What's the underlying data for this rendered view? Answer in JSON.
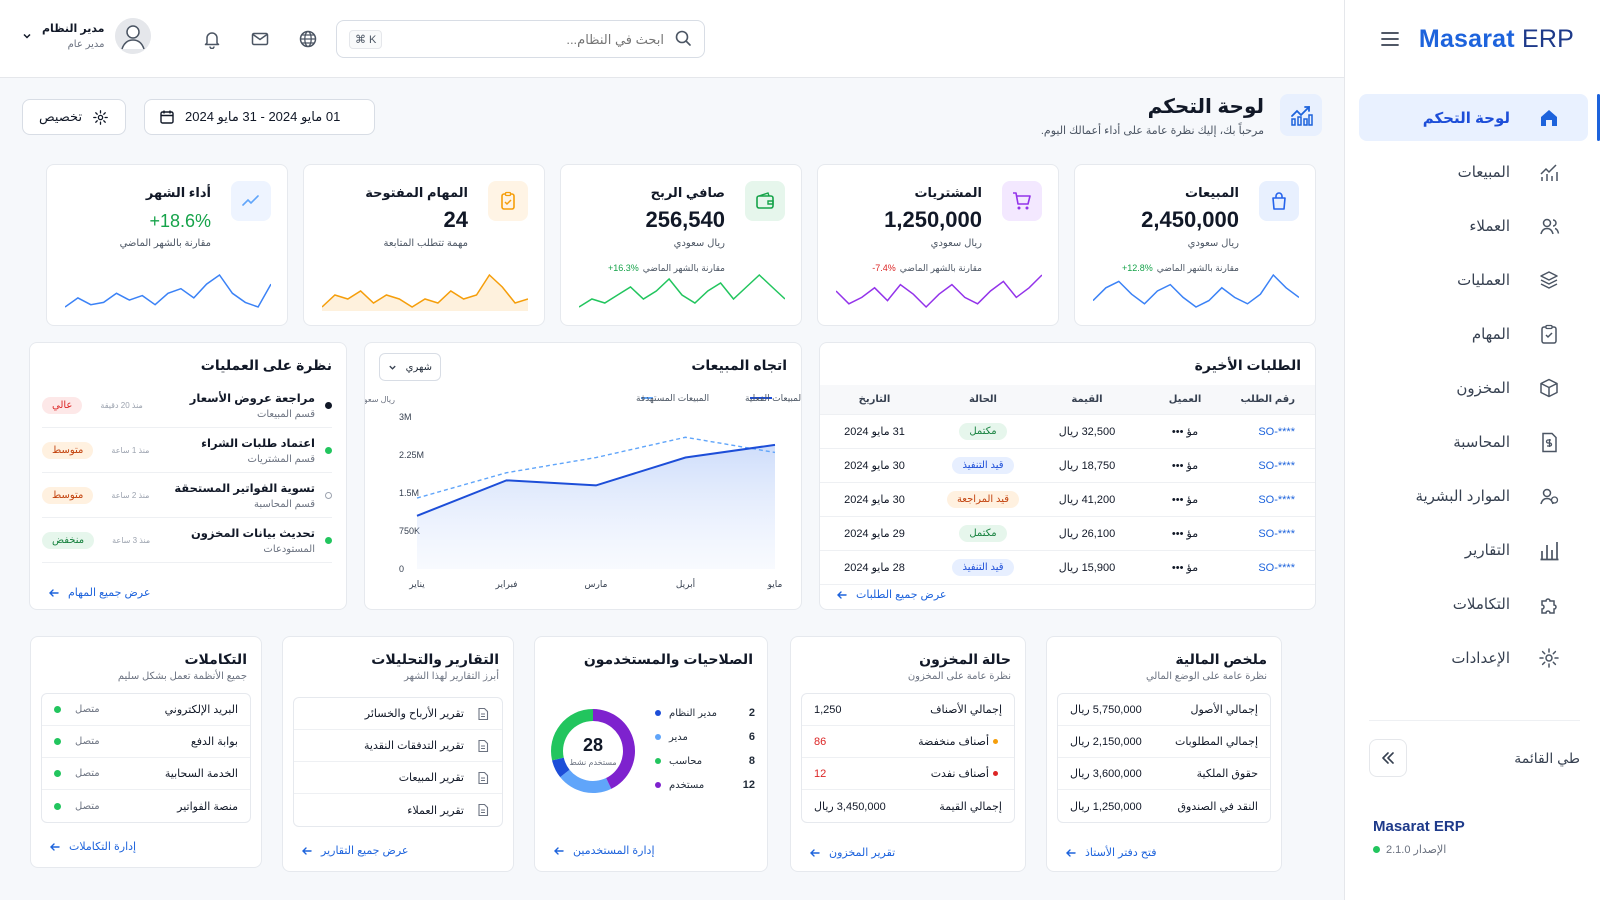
{
  "brand": {
    "name_part1": "Masarat",
    "name_part2": "ERP"
  },
  "nav": [
    {
      "label": "لوحة التحكم",
      "icon": "home-icon",
      "active": true
    },
    {
      "label": "المبيعات",
      "icon": "sales-chart-icon"
    },
    {
      "label": "العملاء",
      "icon": "users-icon"
    },
    {
      "label": "العمليات",
      "icon": "layers-icon"
    },
    {
      "label": "المهام",
      "icon": "clipboard-check-icon"
    },
    {
      "label": "المخزون",
      "icon": "box-icon"
    },
    {
      "label": "المحاسبة",
      "icon": "document-dollar-icon"
    },
    {
      "label": "الموارد البشرية",
      "icon": "people-icon"
    },
    {
      "label": "التقارير",
      "icon": "bar-chart-icon"
    },
    {
      "label": "التكاملات",
      "icon": "puzzle-icon"
    },
    {
      "label": "الإعدادات",
      "icon": "gear-icon"
    }
  ],
  "collapse_label": "طي القائمة",
  "footer": {
    "name": "Masarat ERP",
    "version_label": "الإصدار 2.1.0",
    "status_color": "#22c55e"
  },
  "topbar": {
    "search_placeholder": "ابحث في النظام...",
    "search_shortcut": "⌘ K",
    "user_name": "مدير النظام",
    "user_role": "مدير عام"
  },
  "page": {
    "title": "لوحة التحكم",
    "subtitle": "مرحباً بك، إليك نظرة عامة على أداء أعمالك اليوم.",
    "date_range": "01 مايو 2024 - 31 مايو 2024",
    "customize_label": "تخصيص"
  },
  "kpis": [
    {
      "label": "المبيعات",
      "value": "2,450,000",
      "unit": "ريال سعودي",
      "change": "+12.8%",
      "change_text": "مقارنة بالشهر الماضي",
      "color": "#3b82f6",
      "bg": "#e8f0fe",
      "icon": "shopping-bag-icon",
      "spark": [
        12,
        16,
        18,
        14,
        11,
        15,
        17,
        13,
        10,
        12,
        16,
        13,
        11,
        14,
        20,
        16,
        13
      ],
      "change_color": "#16a34a"
    },
    {
      "label": "المشتريات",
      "value": "1,250,000",
      "unit": "ريال سعودي",
      "change": "-7.4%",
      "change_text": "مقارنة بالشهر الماضي",
      "color": "#9333ea",
      "bg": "#f3e8ff",
      "icon": "cart-icon",
      "spark": [
        14,
        10,
        12,
        15,
        11,
        16,
        13,
        9,
        13,
        16,
        12,
        10,
        14,
        17,
        12,
        15,
        19
      ],
      "change_color": "#dc2626"
    },
    {
      "label": "صافي الربح",
      "value": "256,540",
      "unit": "ريال سعودي",
      "change": "+16.3%",
      "change_text": "مقارنة بالشهر الماضي",
      "color": "#22c55e",
      "bg": "#e6f6ec",
      "icon": "wallet-icon",
      "spark": [
        10,
        12,
        11,
        13,
        15,
        12,
        14,
        17,
        13,
        11,
        14,
        16,
        12,
        15,
        18,
        15,
        12
      ],
      "change_color": "#16a34a"
    },
    {
      "label": "المهام المفتوحة",
      "value": "24",
      "unit": "مهمة تتطلب المتابعة",
      "color": "#f59e0b",
      "bg": "#fff4e5",
      "icon": "clipboard-icon",
      "spark": [
        10,
        13,
        12,
        14,
        11,
        13,
        12,
        10,
        12,
        11,
        14,
        12,
        13,
        18,
        15,
        11,
        12
      ]
    },
    {
      "label": "أداء الشهر",
      "value": "+18.6%",
      "unit": "مقارنة بالشهر الماضي",
      "color": "#3b82f6",
      "bg": "#eef4ff",
      "icon": "trend-icon",
      "spark": [
        12,
        16,
        13,
        14,
        18,
        15,
        17,
        13,
        18,
        20,
        16,
        22,
        26,
        18,
        14,
        12,
        22
      ],
      "value_color": "#16a34a"
    }
  ],
  "orders": {
    "title": "الطلبات الأخيرة",
    "headers": [
      "رقم الطلب",
      "العميل",
      "القيمة",
      "الحالة",
      "التاريخ"
    ],
    "rows": [
      {
        "id": "SO-****",
        "client": "مؤ •••",
        "amount": "32,500 ريال",
        "status": "مكتمل",
        "status_cls": "b-green",
        "date": "31 مايو 2024"
      },
      {
        "id": "SO-****",
        "client": "مؤ •••",
        "amount": "18,750 ريال",
        "status": "قيد التنفيذ",
        "status_cls": "b-blue",
        "date": "30 مايو 2024"
      },
      {
        "id": "SO-****",
        "client": "مؤ •••",
        "amount": "41,200 ريال",
        "status": "قيد المراجعة",
        "status_cls": "b-orange",
        "date": "30 مايو 2024"
      },
      {
        "id": "SO-****",
        "client": "مؤ •••",
        "amount": "26,100 ريال",
        "status": "مكتمل",
        "status_cls": "b-green",
        "date": "29 مايو 2024"
      },
      {
        "id": "SO-****",
        "client": "مؤ •••",
        "amount": "15,900 ريال",
        "status": "قيد التنفيذ",
        "status_cls": "b-blue",
        "date": "28 مايو 2024"
      }
    ],
    "link": "عرض جميع الطلبات"
  },
  "sales_trend": {
    "title": "اتجاه المبيعات",
    "period": "شهري",
    "legend_actual": "المبيعات الفعلية",
    "legend_target": "المبيعات المستهدفة",
    "unit_label": "ريال سعودي"
  },
  "chart_data": {
    "type": "line",
    "categories": [
      "يناير",
      "فبراير",
      "مارس",
      "أبريل",
      "مايو"
    ],
    "series": [
      {
        "name": "المبيعات الفعلية",
        "values": [
          1050000,
          1750000,
          1650000,
          2200000,
          2450000
        ],
        "color": "#1d4ed8"
      },
      {
        "name": "المبيعات المستهدفة",
        "values": [
          1400000,
          1900000,
          2200000,
          2600000,
          2300000
        ],
        "color": "#60a5fa"
      }
    ],
    "y_ticks": [
      "0",
      "750K",
      "1.5M",
      "2.25M",
      "3M"
    ],
    "ylim": [
      0,
      3000000
    ],
    "ylabel": "ريال سعودي",
    "legend_position": "top"
  },
  "ops": {
    "title": "نظرة على العمليات",
    "items": [
      {
        "title": "مراجعة عروض الأسعار",
        "dept": "قسم المبيعات",
        "time": "منذ 20 دقيقة",
        "level": "عالي",
        "cls": "b-red",
        "dot": "#111827"
      },
      {
        "title": "اعتماد طلبات الشراء",
        "dept": "قسم المشتريات",
        "time": "منذ 1 ساعة",
        "level": "متوسط",
        "cls": "b-orange",
        "dot": "#22c55e"
      },
      {
        "title": "تسوية الفواتير المستحقة",
        "dept": "قسم المحاسبة",
        "time": "منذ 2 ساعة",
        "level": "متوسط",
        "cls": "b-orange",
        "dot": "hollow"
      },
      {
        "title": "تحديث بيانات المخزون",
        "dept": "المستودعات",
        "time": "منذ 3 ساعة",
        "level": "منخفض",
        "cls": "b-green",
        "dot": "#22c55e"
      }
    ],
    "link": "عرض جميع المهام"
  },
  "finance": {
    "title": "ملخص المالية",
    "subtitle": "نظرة عامة على الوضع المالي",
    "rows": [
      {
        "label": "إجمالي الأصول",
        "value": "5,750,000 ريال"
      },
      {
        "label": "إجمالي المطلوبات",
        "value": "2,150,000 ريال"
      },
      {
        "label": "حقوق الملكية",
        "value": "3,600,000 ريال"
      },
      {
        "label": "النقد في الصندوق",
        "value": "1,250,000 ريال"
      }
    ],
    "link": "فتح دفتر الأستاذ"
  },
  "inventory": {
    "title": "حالة المخزون",
    "subtitle": "نظرة عامة على المخزون",
    "rows": [
      {
        "label": "إجمالي الأصناف",
        "value": "1,250",
        "color": "#111827",
        "dot": ""
      },
      {
        "label": "أصناف منخفضة",
        "value": "86",
        "color": "#dc2626",
        "dot": "#f59e0b"
      },
      {
        "label": "أصناف نفدت",
        "value": "12",
        "color": "#dc2626",
        "dot": "#dc2626"
      },
      {
        "label": "إجمالي القيمة",
        "value": "3,450,000 ريال",
        "color": "#111827",
        "dot": ""
      }
    ],
    "link": "تقرير المخزون"
  },
  "permissions": {
    "title": "الصلاحيات والمستخدمون",
    "total": "28",
    "total_label": "مستخدم نشط",
    "roles": [
      {
        "name": "مدير النظام",
        "count": "2",
        "color": "#1d4ed8"
      },
      {
        "name": "مدير",
        "count": "6",
        "color": "#60a5fa"
      },
      {
        "name": "محاسب",
        "count": "8",
        "color": "#22c55e"
      },
      {
        "name": "مستخدم",
        "count": "12",
        "color": "#7e22ce"
      }
    ],
    "link": "إدارة المستخدمين"
  },
  "reports": {
    "title": "التقارير والتحليلات",
    "subtitle": "أبرز التقارير لهذا الشهر",
    "items": [
      "تقرير الأرباح والخسائر",
      "تقرير التدفقات النقدية",
      "تقرير المبيعات",
      "تقرير العملاء"
    ],
    "link": "عرض جميع التقارير"
  },
  "integrations": {
    "title": "التكاملات",
    "subtitle": "جميع الأنظمة تعمل بشكل سليم",
    "items": [
      {
        "name": "البريد الإلكتروني",
        "status": "متصل"
      },
      {
        "name": "بوابة الدفع",
        "status": "متصل"
      },
      {
        "name": "الخدمة السحابية",
        "status": "متصل"
      },
      {
        "name": "منصة الفواتير",
        "status": "متصل"
      }
    ],
    "link": "إدارة التكاملات"
  }
}
